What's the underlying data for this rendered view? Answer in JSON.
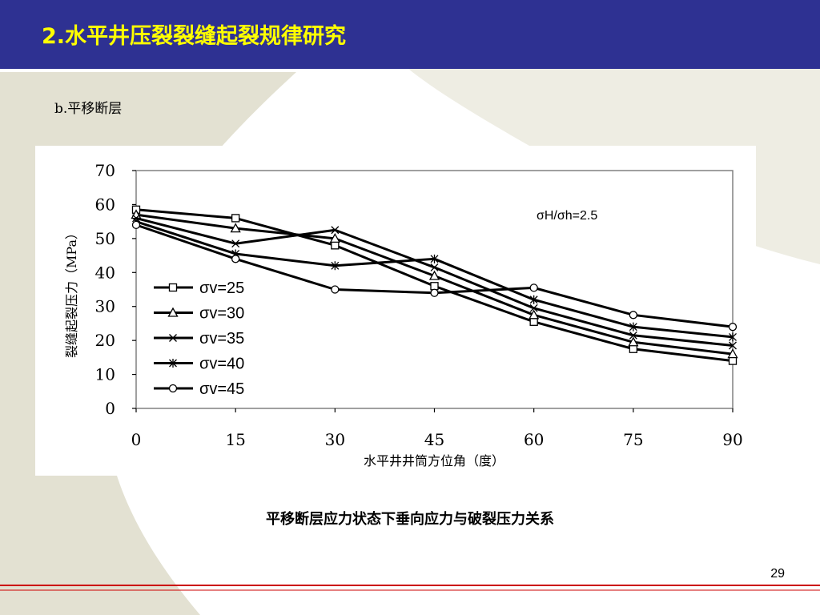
{
  "slide": {
    "title": "2.水平井压裂裂缝起裂规律研究",
    "subtitle": "b.平移断层",
    "caption": "平移断层应力状态下垂向应力与破裂压力关系",
    "page_number": "29"
  },
  "colors": {
    "title_bar": "#2e3192",
    "title_text": "#ffff00",
    "divider_red": "#cc0000",
    "background_accent": "#e3e1d2"
  },
  "chart_data": {
    "type": "line",
    "title": "",
    "annotation": "σH/σh=2.5",
    "xlabel": "水平井井筒方位角（度）",
    "ylabel": "裂缝起裂压力（MPa）",
    "x": [
      0,
      15,
      30,
      45,
      60,
      75,
      90
    ],
    "xlim": [
      0,
      90
    ],
    "ylim": [
      0,
      70
    ],
    "x_ticks": [
      "0",
      "15",
      "30",
      "45",
      "60",
      "75",
      "90"
    ],
    "y_ticks": [
      "0",
      "10",
      "20",
      "30",
      "40",
      "50",
      "60",
      "70"
    ],
    "grid": false,
    "legend_position": "left-middle",
    "series": [
      {
        "name": "σv=25",
        "marker": "square",
        "values": [
          58.5,
          56,
          48,
          36,
          25.5,
          17.5,
          14
        ]
      },
      {
        "name": "σv=30",
        "marker": "triangle",
        "values": [
          57,
          53,
          50,
          39,
          27.5,
          19.5,
          16
        ]
      },
      {
        "name": "σv=35",
        "marker": "x",
        "values": [
          56,
          48.5,
          52.5,
          41.5,
          29.5,
          21.5,
          18.5
        ]
      },
      {
        "name": "σv=40",
        "marker": "star",
        "values": [
          55,
          45.5,
          42,
          44,
          32,
          24,
          21
        ]
      },
      {
        "name": "σv=45",
        "marker": "circle",
        "values": [
          54,
          44,
          35,
          34,
          35.5,
          27.5,
          24
        ]
      }
    ]
  }
}
